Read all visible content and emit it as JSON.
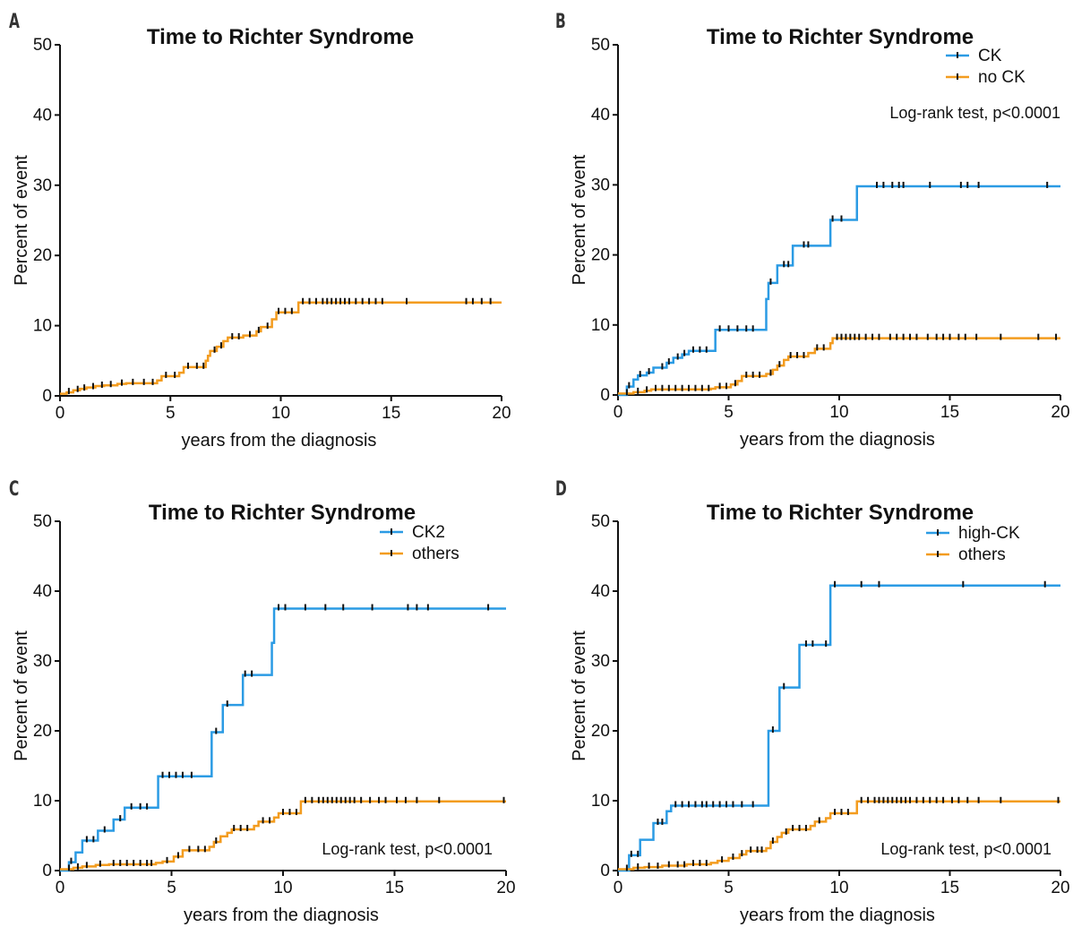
{
  "panels_letters": [
    "A",
    "B",
    "C",
    "D"
  ],
  "colors": {
    "blue": "#2b9be4",
    "orange": "#f39c1f",
    "censor": "#111111",
    "axis": "#111111"
  },
  "chart_data": [
    {
      "panel": "A",
      "type": "line",
      "title": "Time to Richter Syndrome",
      "xlabel": "years from the diagnosis",
      "ylabel": "Percent of event",
      "xlim": [
        0,
        20
      ],
      "ylim": [
        0,
        50
      ],
      "xticks": [
        0,
        5,
        10,
        15,
        20
      ],
      "yticks": [
        0,
        10,
        20,
        30,
        40,
        50
      ],
      "legend": null,
      "annotation": "",
      "series": [
        {
          "color": "orange",
          "steps": [
            [
              0,
              0.3
            ],
            [
              0.3,
              0.5
            ],
            [
              0.6,
              0.8
            ],
            [
              0.9,
              1.0
            ],
            [
              1.2,
              1.2
            ],
            [
              1.6,
              1.4
            ],
            [
              2.0,
              1.5
            ],
            [
              2.6,
              1.7
            ],
            [
              3.0,
              1.8
            ],
            [
              4.4,
              2.2
            ],
            [
              4.6,
              2.8
            ],
            [
              5.4,
              3.3
            ],
            [
              5.6,
              4.1
            ],
            [
              6.6,
              5.0
            ],
            [
              6.7,
              5.7
            ],
            [
              6.8,
              6.4
            ],
            [
              7.1,
              7.0
            ],
            [
              7.4,
              7.8
            ],
            [
              7.6,
              8.3
            ],
            [
              8.3,
              8.6
            ],
            [
              8.9,
              9.2
            ],
            [
              9.1,
              9.8
            ],
            [
              9.6,
              10.9
            ],
            [
              9.8,
              11.9
            ],
            [
              10.8,
              13.3
            ],
            [
              20,
              13.3
            ]
          ],
          "censors": [
            0.4,
            0.8,
            1.1,
            1.5,
            1.9,
            2.3,
            2.8,
            3.3,
            3.8,
            4.2,
            4.8,
            5.2,
            5.8,
            6.2,
            6.5,
            7.0,
            7.3,
            7.8,
            8.1,
            8.6,
            9.0,
            9.4,
            9.9,
            10.2,
            10.5,
            11.0,
            11.3,
            11.6,
            11.9,
            12.1,
            12.3,
            12.5,
            12.7,
            12.9,
            13.1,
            13.4,
            13.7,
            14.0,
            14.3,
            14.6,
            15.7,
            18.4,
            18.7,
            19.1,
            19.5
          ]
        }
      ]
    },
    {
      "panel": "B",
      "type": "line",
      "title": "Time to Richter Syndrome",
      "xlabel": "years from the diagnosis",
      "ylabel": "Percent of event",
      "xlim": [
        0,
        20
      ],
      "ylim": [
        0,
        50
      ],
      "xticks": [
        0,
        5,
        10,
        15,
        20
      ],
      "yticks": [
        0,
        10,
        20,
        30,
        40,
        50
      ],
      "legend": [
        {
          "name": "CK",
          "color": "blue"
        },
        {
          "name": "no CK",
          "color": "orange"
        }
      ],
      "annotation": "Log-rank test, p<0.0001",
      "annotation_pos": "top",
      "series": [
        {
          "name": "CK",
          "color": "blue",
          "steps": [
            [
              0,
              0
            ],
            [
              0.4,
              1.2
            ],
            [
              0.7,
              2.2
            ],
            [
              0.9,
              2.8
            ],
            [
              1.3,
              3.2
            ],
            [
              1.6,
              3.9
            ],
            [
              2.2,
              4.6
            ],
            [
              2.5,
              5.3
            ],
            [
              2.9,
              5.8
            ],
            [
              3.2,
              6.3
            ],
            [
              4.4,
              9.3
            ],
            [
              6.7,
              13.7
            ],
            [
              6.8,
              16.0
            ],
            [
              7.2,
              18.5
            ],
            [
              7.9,
              21.3
            ],
            [
              9.6,
              25.0
            ],
            [
              10.8,
              29.8
            ],
            [
              20,
              29.8
            ]
          ],
          "censors": [
            0.5,
            1.0,
            1.4,
            2.0,
            2.3,
            2.7,
            3.0,
            3.4,
            3.7,
            4.0,
            4.6,
            5.0,
            5.4,
            5.8,
            6.1,
            6.9,
            7.5,
            7.7,
            8.4,
            8.6,
            9.7,
            10.1,
            11.7,
            12.0,
            12.4,
            12.7,
            12.9,
            14.1,
            15.5,
            15.8,
            16.3,
            19.4
          ]
        },
        {
          "name": "no CK",
          "color": "orange",
          "steps": [
            [
              0,
              0.2
            ],
            [
              0.7,
              0.4
            ],
            [
              1.2,
              0.6
            ],
            [
              1.5,
              0.8
            ],
            [
              4.2,
              0.9
            ],
            [
              4.4,
              1.1
            ],
            [
              5.1,
              1.5
            ],
            [
              5.4,
              2.0
            ],
            [
              5.6,
              2.7
            ],
            [
              6.7,
              3.0
            ],
            [
              7.0,
              3.6
            ],
            [
              7.2,
              4.2
            ],
            [
              7.5,
              5.0
            ],
            [
              7.7,
              5.5
            ],
            [
              8.6,
              6.0
            ],
            [
              8.9,
              6.6
            ],
            [
              9.6,
              7.4
            ],
            [
              9.7,
              8.1
            ],
            [
              20,
              8.1
            ]
          ],
          "censors": [
            0.4,
            0.9,
            1.3,
            1.7,
            2.0,
            2.3,
            2.6,
            2.9,
            3.2,
            3.5,
            3.8,
            4.1,
            4.6,
            4.9,
            5.3,
            5.8,
            6.1,
            6.4,
            6.9,
            7.3,
            7.8,
            8.1,
            8.4,
            9.0,
            9.3,
            9.9,
            10.1,
            10.3,
            10.5,
            10.7,
            10.9,
            11.2,
            11.5,
            11.8,
            12.3,
            12.6,
            12.9,
            13.2,
            13.5,
            14.0,
            14.4,
            14.7,
            15.0,
            15.4,
            15.7,
            16.2,
            17.3,
            19.0,
            19.8
          ]
        }
      ]
    },
    {
      "panel": "C",
      "type": "line",
      "title": "Time to Richter Syndrome",
      "xlabel": "years from the diagnosis",
      "ylabel": "Percent of event",
      "xlim": [
        0,
        20
      ],
      "ylim": [
        0,
        50
      ],
      "xticks": [
        0,
        5,
        10,
        15,
        20
      ],
      "yticks": [
        0,
        10,
        20,
        30,
        40,
        50
      ],
      "legend": [
        {
          "name": "CK2",
          "color": "blue"
        },
        {
          "name": "others",
          "color": "orange"
        }
      ],
      "annotation": "Log-rank test, p<0.0001",
      "annotation_pos": "bottom",
      "series": [
        {
          "name": "CK2",
          "color": "blue",
          "steps": [
            [
              0,
              0
            ],
            [
              0.4,
              1.2
            ],
            [
              0.7,
              2.6
            ],
            [
              1.0,
              4.3
            ],
            [
              1.7,
              5.7
            ],
            [
              2.4,
              7.3
            ],
            [
              2.9,
              9.0
            ],
            [
              4.4,
              13.5
            ],
            [
              6.8,
              19.8
            ],
            [
              7.3,
              23.7
            ],
            [
              8.2,
              28.0
            ],
            [
              9.5,
              32.6
            ],
            [
              9.6,
              37.5
            ],
            [
              20,
              37.5
            ]
          ],
          "censors": [
            0.5,
            1.2,
            1.5,
            2.0,
            2.7,
            3.2,
            3.6,
            3.9,
            4.6,
            4.9,
            5.2,
            5.5,
            5.9,
            7.0,
            7.5,
            8.3,
            8.6,
            9.8,
            10.1,
            11.0,
            11.9,
            12.7,
            14.0,
            15.6,
            16.0,
            16.5,
            19.2
          ]
        },
        {
          "name": "others",
          "color": "orange",
          "steps": [
            [
              0,
              0.2
            ],
            [
              0.6,
              0.4
            ],
            [
              1.0,
              0.6
            ],
            [
              1.6,
              0.8
            ],
            [
              2.2,
              0.9
            ],
            [
              4.3,
              1.1
            ],
            [
              4.6,
              1.3
            ],
            [
              5.1,
              2.0
            ],
            [
              5.5,
              2.9
            ],
            [
              6.7,
              3.4
            ],
            [
              6.9,
              4.1
            ],
            [
              7.2,
              4.9
            ],
            [
              7.5,
              5.4
            ],
            [
              7.7,
              5.9
            ],
            [
              8.7,
              6.4
            ],
            [
              8.9,
              7.0
            ],
            [
              9.6,
              7.6
            ],
            [
              9.8,
              8.2
            ],
            [
              10.8,
              9.9
            ],
            [
              20,
              9.9
            ]
          ],
          "censors": [
            0.4,
            0.8,
            1.2,
            1.8,
            2.4,
            2.7,
            3.0,
            3.3,
            3.6,
            3.9,
            4.1,
            4.8,
            5.3,
            5.8,
            6.2,
            6.5,
            7.0,
            7.8,
            8.1,
            8.4,
            9.1,
            9.4,
            10.0,
            10.3,
            10.6,
            11.0,
            11.3,
            11.6,
            11.8,
            12.0,
            12.2,
            12.4,
            12.6,
            12.8,
            13.0,
            13.2,
            13.5,
            13.9,
            14.3,
            14.6,
            15.1,
            15.5,
            16.0,
            17.0,
            19.9
          ]
        }
      ]
    },
    {
      "panel": "D",
      "type": "line",
      "title": "Time to Richter Syndrome",
      "xlabel": "years from the diagnosis",
      "ylabel": "Percent of event",
      "xlim": [
        0,
        20
      ],
      "ylim": [
        0,
        50
      ],
      "xticks": [
        0,
        5,
        10,
        15,
        20
      ],
      "yticks": [
        0,
        10,
        20,
        30,
        40,
        50
      ],
      "legend": [
        {
          "name": "high-CK",
          "color": "blue"
        },
        {
          "name": "others",
          "color": "orange"
        }
      ],
      "annotation": "Log-rank test, p<0.0001",
      "annotation_pos": "bottom",
      "series": [
        {
          "name": "high-CK",
          "color": "blue",
          "steps": [
            [
              0,
              0
            ],
            [
              0.5,
              2.2
            ],
            [
              1.0,
              4.4
            ],
            [
              1.6,
              6.8
            ],
            [
              2.2,
              8.5
            ],
            [
              2.4,
              9.3
            ],
            [
              6.8,
              20.0
            ],
            [
              7.3,
              26.2
            ],
            [
              8.2,
              32.3
            ],
            [
              9.6,
              40.8
            ],
            [
              20,
              40.8
            ]
          ],
          "censors": [
            0.6,
            0.9,
            1.8,
            2.0,
            2.6,
            2.9,
            3.2,
            3.5,
            3.8,
            4.0,
            4.3,
            4.6,
            4.9,
            5.2,
            5.6,
            6.1,
            7.0,
            7.5,
            8.5,
            8.8,
            9.4,
            9.8,
            11.0,
            11.8,
            15.6,
            19.3
          ]
        },
        {
          "name": "others",
          "color": "orange",
          "steps": [
            [
              0,
              0.2
            ],
            [
              0.7,
              0.4
            ],
            [
              1.2,
              0.5
            ],
            [
              2.0,
              0.7
            ],
            [
              3.1,
              0.9
            ],
            [
              4.2,
              1.1
            ],
            [
              4.5,
              1.4
            ],
            [
              5.0,
              1.8
            ],
            [
              5.5,
              2.3
            ],
            [
              5.8,
              2.8
            ],
            [
              6.7,
              3.2
            ],
            [
              6.9,
              4.1
            ],
            [
              7.2,
              4.8
            ],
            [
              7.4,
              5.4
            ],
            [
              7.7,
              5.9
            ],
            [
              8.7,
              6.4
            ],
            [
              8.9,
              7.0
            ],
            [
              9.4,
              7.5
            ],
            [
              9.6,
              8.2
            ],
            [
              10.8,
              9.9
            ],
            [
              20,
              9.9
            ]
          ],
          "censors": [
            0.4,
            0.9,
            1.4,
            1.8,
            2.3,
            2.7,
            3.0,
            3.4,
            3.7,
            4.0,
            4.7,
            5.2,
            5.6,
            6.0,
            6.3,
            6.5,
            7.0,
            7.6,
            7.9,
            8.2,
            8.5,
            9.1,
            9.8,
            10.1,
            10.4,
            11.0,
            11.3,
            11.6,
            11.8,
            12.0,
            12.2,
            12.4,
            12.6,
            12.8,
            13.0,
            13.2,
            13.5,
            13.8,
            14.1,
            14.4,
            14.7,
            15.1,
            15.4,
            15.8,
            16.3,
            17.3,
            19.9
          ]
        }
      ]
    }
  ]
}
